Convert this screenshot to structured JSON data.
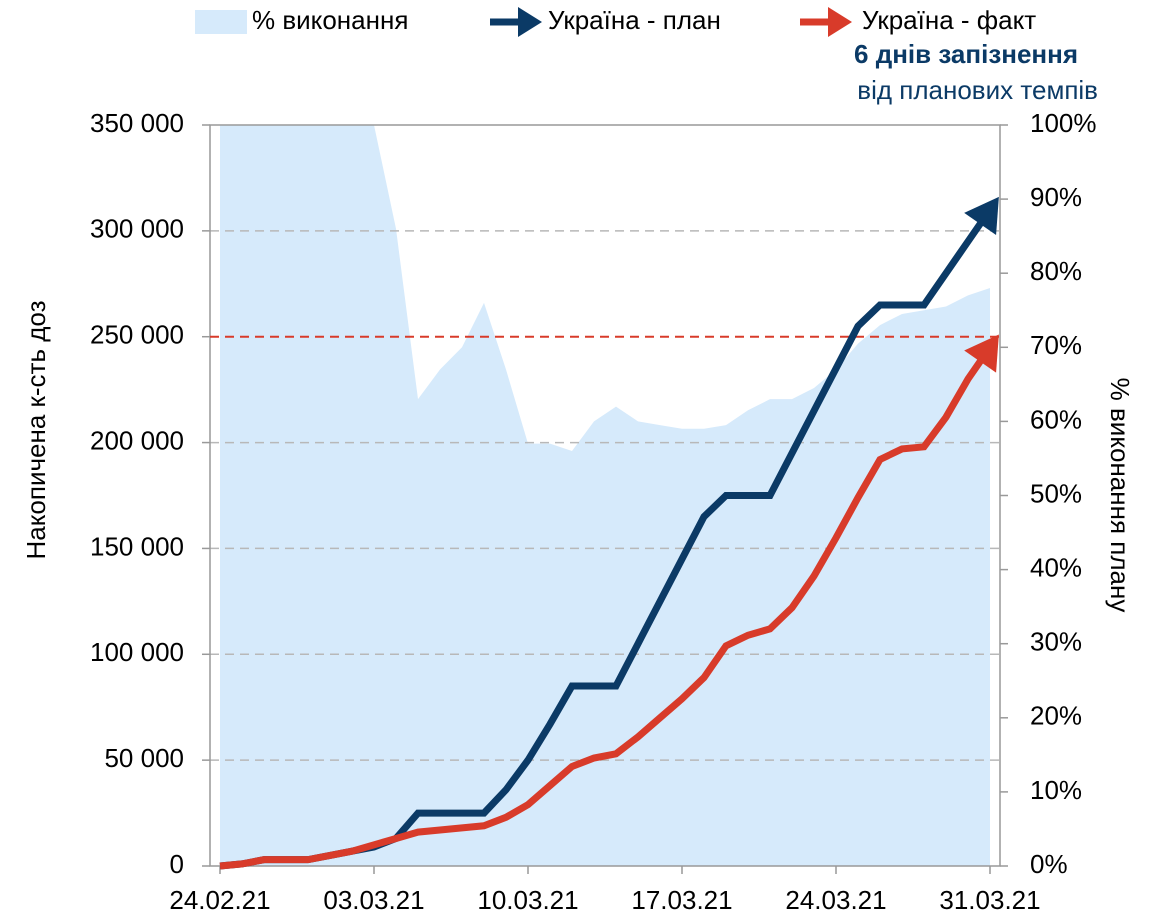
{
  "chart_data": {
    "type": "line",
    "y_label": "Накопичена к-сть доз",
    "y2_label": "% виконання плану",
    "annotations": [
      "6 днів запізнення",
      "від планових темпів"
    ],
    "categories": [
      "24.02.21",
      null,
      null,
      null,
      null,
      null,
      null,
      "03.03.21",
      null,
      null,
      null,
      null,
      null,
      null,
      "10.03.21",
      null,
      null,
      null,
      null,
      null,
      null,
      "17.03.21",
      null,
      null,
      null,
      null,
      null,
      null,
      "24.03.21",
      null,
      null,
      null,
      null,
      null,
      null,
      "31.03.21"
    ],
    "series": [
      {
        "name": "% виконання",
        "type": "area",
        "axis": "y2",
        "color": "#d6eafb",
        "values": [
          100,
          100,
          100,
          100,
          100,
          100,
          100,
          100,
          86,
          63,
          67,
          70,
          76,
          67,
          57,
          57,
          56,
          60,
          62,
          60,
          59.5,
          59,
          59,
          59.5,
          61.5,
          63,
          63,
          64.5,
          67,
          70.5,
          73,
          74.5,
          75,
          75.5,
          77,
          78
        ]
      },
      {
        "name": "Україна - план",
        "type": "line",
        "color": "#0b3a66",
        "values": [
          0,
          1000,
          3000,
          3000,
          3000,
          5000,
          7000,
          9000,
          13000,
          25000,
          25000,
          25000,
          25000,
          36000,
          50000,
          67000,
          85000,
          85000,
          85000,
          105000,
          125000,
          145000,
          165000,
          175000,
          175000,
          175000,
          195000,
          215000,
          235000,
          255000,
          265000,
          265000,
          265000,
          280000,
          295000,
          310000
        ]
      },
      {
        "name": "Україна - факт",
        "type": "line",
        "color": "#d83b2a",
        "values": [
          0,
          1000,
          3000,
          3000,
          3000,
          5000,
          7000,
          10000,
          13000,
          16000,
          17000,
          18000,
          19000,
          23000,
          29000,
          38000,
          47000,
          51000,
          53000,
          61000,
          70000,
          79000,
          89000,
          104000,
          109000,
          112000,
          122000,
          137000,
          155000,
          174000,
          192000,
          197000,
          198000,
          212000,
          230000,
          245000
        ]
      }
    ],
    "reference_line": {
      "value": 250000,
      "color": "#d83b2a"
    },
    "ylim": [
      0,
      350000
    ],
    "yticks": [
      0,
      {
        "value": 50000,
        "label": "50 000"
      },
      {
        "value": 100000,
        "label": "100 000"
      },
      {
        "value": 150000,
        "label": "150 000"
      },
      {
        "value": 200000,
        "label": "200 000"
      },
      {
        "value": 250000,
        "label": "250 000"
      },
      {
        "value": 300000,
        "label": "300 000"
      },
      {
        "value": 350000,
        "label": "350 000"
      }
    ],
    "y2lim": [
      0,
      100
    ],
    "y2ticks": [
      {
        "value": 0,
        "label": "0%"
      },
      {
        "value": 10,
        "label": "10%"
      },
      {
        "value": 20,
        "label": "20%"
      },
      {
        "value": 30,
        "label": "30%"
      },
      {
        "value": 40,
        "label": "40%"
      },
      {
        "value": 50,
        "label": "50%"
      },
      {
        "value": 60,
        "label": "60%"
      },
      {
        "value": 70,
        "label": "70%"
      },
      {
        "value": 80,
        "label": "80%"
      },
      {
        "value": 90,
        "label": "90%"
      },
      {
        "value": 100,
        "label": "100%"
      }
    ],
    "grid": true
  }
}
